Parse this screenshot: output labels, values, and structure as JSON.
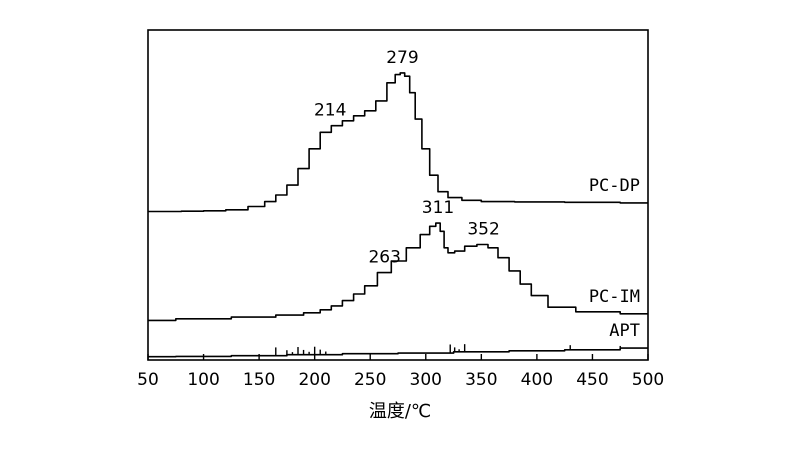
{
  "chart_data": {
    "type": "line",
    "title": "",
    "xlabel": "温度/℃",
    "ylabel": "",
    "xlim": [
      50,
      500
    ],
    "ylim": [
      0,
      100
    ],
    "xticks": [
      "50",
      "100",
      "150",
      "200",
      "250",
      "300",
      "350",
      "400",
      "450",
      "500"
    ],
    "grid": false,
    "legend": "none",
    "series": [
      {
        "name": "PC-DP",
        "x": [
          50,
          70,
          90,
          110,
          130,
          150,
          160,
          170,
          180,
          190,
          200,
          210,
          220,
          230,
          240,
          250,
          260,
          270,
          275,
          279,
          283,
          288,
          293,
          300,
          307,
          315,
          325,
          340,
          360,
          400,
          450,
          500
        ],
        "y": [
          45,
          45,
          45.1,
          45.2,
          45.5,
          46.5,
          48,
          50,
          53,
          58,
          64,
          69,
          71,
          72.5,
          74,
          75.5,
          78.5,
          84,
          86.5,
          87,
          86,
          81,
          73,
          64,
          56,
          51,
          49.2,
          48.4,
          48,
          47.9,
          47.8,
          47.6
        ]
      },
      {
        "name": "PC-IM",
        "x": [
          50,
          100,
          150,
          180,
          200,
          210,
          220,
          230,
          240,
          250,
          263,
          275,
          290,
          300,
          307,
          311,
          315,
          318,
          322,
          330,
          340,
          352,
          360,
          370,
          380,
          390,
          400,
          420,
          450,
          500
        ],
        "y": [
          12,
          12.5,
          13,
          13.6,
          14.3,
          15.2,
          16.4,
          18,
          20,
          22.5,
          26.5,
          30,
          34,
          38,
          40.5,
          41.5,
          39,
          34,
          32.5,
          33,
          34.5,
          35,
          34,
          31,
          27,
          23,
          19.5,
          16,
          14.6,
          14
        ]
      },
      {
        "name": "APT",
        "x": [
          50,
          100,
          150,
          200,
          250,
          300,
          350,
          400,
          450,
          500
        ],
        "y": [
          1,
          1.1,
          1.3,
          1.6,
          1.9,
          2.1,
          2.5,
          2.8,
          3.1,
          3.6
        ]
      }
    ],
    "annotations": [
      {
        "text": "214",
        "x": 214,
        "y": 71
      },
      {
        "text": "279",
        "x": 279,
        "y": 87
      },
      {
        "text": "263",
        "x": 263,
        "y": 26.5
      },
      {
        "text": "311",
        "x": 311,
        "y": 41.5
      },
      {
        "text": "352",
        "x": 352,
        "y": 35
      }
    ]
  }
}
